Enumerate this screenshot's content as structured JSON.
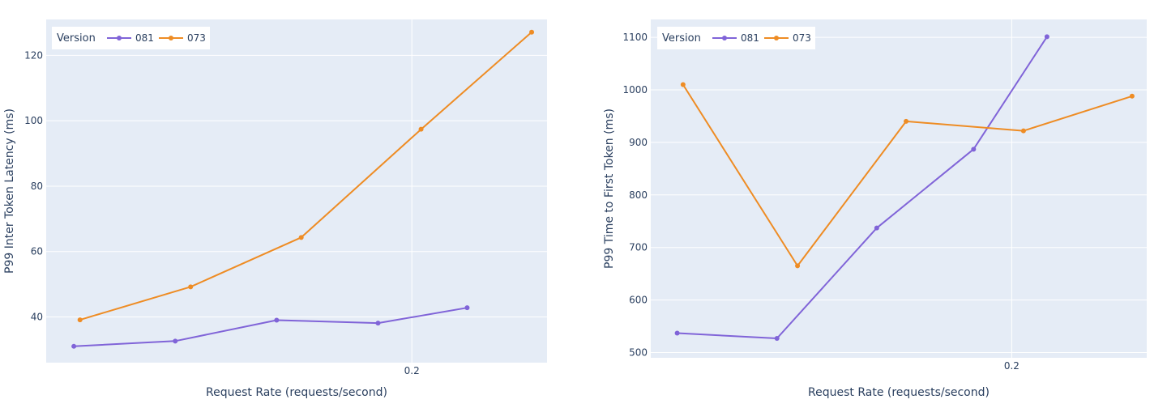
{
  "colors": {
    "plot_bg": "#e5ecf6",
    "grid": "#ffffff",
    "text": "#2a3f5f",
    "series_081": "#8064d8",
    "series_073": "#ee8c24"
  },
  "chart_data": [
    {
      "type": "line",
      "xlabel": "Request Rate (requests/second)",
      "ylabel": "P99 Inter Token Latency (ms)",
      "xticks": [
        0.2
      ],
      "yticks": [
        40,
        60,
        80,
        100,
        120
      ],
      "xlim": [
        0.081,
        0.244
      ],
      "ylim": [
        26,
        131
      ],
      "grid": true,
      "legend": {
        "title": "Version",
        "position": "top-left",
        "entries": [
          "081",
          "073"
        ]
      },
      "series": [
        {
          "name": "081",
          "color": "#8064d8",
          "x": [
            0.09,
            0.123,
            0.156,
            0.189,
            0.218
          ],
          "y": [
            31,
            32.6,
            39,
            38.1,
            42.8
          ]
        },
        {
          "name": "073",
          "color": "#ee8c24",
          "x": [
            0.092,
            0.128,
            0.164,
            0.203,
            0.239
          ],
          "y": [
            39.1,
            49.2,
            64.3,
            97.4,
            127.1
          ]
        }
      ]
    },
    {
      "type": "line",
      "xlabel": "Request Rate (requests/second)",
      "ylabel": "P99 Time to First Token (ms)",
      "xticks": [
        0.2
      ],
      "yticks": [
        500,
        600,
        700,
        800,
        900,
        1000,
        1100
      ],
      "xlim": [
        0.077,
        0.246
      ],
      "ylim": [
        490,
        1134
      ],
      "grid": true,
      "legend": {
        "title": "Version",
        "position": "top-left",
        "entries": [
          "081",
          "073"
        ]
      },
      "series": [
        {
          "name": "081",
          "color": "#8064d8",
          "x": [
            0.086,
            0.12,
            0.154,
            0.187,
            0.212
          ],
          "y": [
            537,
            527,
            737,
            887,
            1101
          ]
        },
        {
          "name": "073",
          "color": "#ee8c24",
          "x": [
            0.088,
            0.127,
            0.164,
            0.204,
            0.241
          ],
          "y": [
            1010,
            665,
            940,
            922,
            988
          ]
        }
      ]
    }
  ]
}
